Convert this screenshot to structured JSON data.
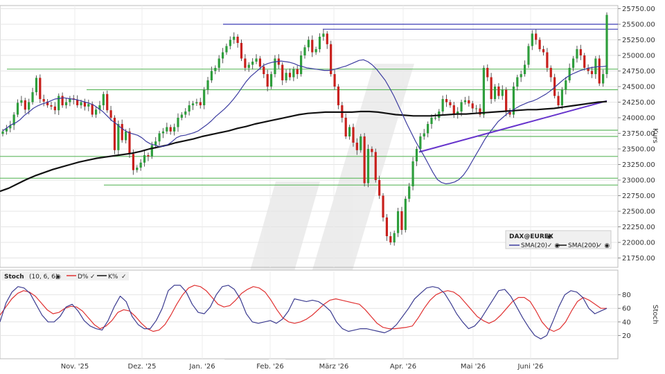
{
  "chart_data": [
    {
      "type": "candlestick",
      "instrument": "DAX@EUREX",
      "ylabel": "Kurs",
      "ylim": [
        21600,
        25800
      ],
      "y_ticks": [
        "25750.00",
        "25500.00",
        "25250.00",
        "25000.00",
        "24750.00",
        "24500.00",
        "24250.00",
        "24000.00",
        "23750.00",
        "23500.00",
        "23250.00",
        "23000.00",
        "22750.00",
        "22500.00",
        "22250.00",
        "22000.00",
        "21750.00"
      ],
      "x_ticks": [
        "Nov. '25",
        "Dez. '25",
        "Jan. '26",
        "Feb. '26",
        "März '26",
        "Apr. '26",
        "Mai '26",
        "Juni '26"
      ],
      "grid": true,
      "legend": [
        {
          "name": "SMA(20)",
          "color": "#3c3ca0"
        },
        {
          "name": "SMA(200)",
          "color": "#111111"
        }
      ],
      "colors": {
        "up": "#2e9e3c",
        "down": "#c8201c",
        "sma20": "#3c3ca0",
        "sma200": "#111111",
        "support": "#5fb85f",
        "resistance": "#3b3bb4",
        "trendline": "#6633cc"
      },
      "candles_close": [
        23780,
        23830,
        23880,
        24050,
        24240,
        24280,
        24130,
        24250,
        24410,
        24640,
        24300,
        24260,
        24200,
        24180,
        24120,
        24350,
        24200,
        24250,
        24310,
        24290,
        24200,
        24250,
        24180,
        24220,
        24050,
        24130,
        24200,
        24380,
        24120,
        24000,
        23480,
        23900,
        23640,
        23780,
        23420,
        23160,
        23200,
        23280,
        23400,
        23380,
        23560,
        23620,
        23750,
        23780,
        23850,
        23780,
        23850,
        24000,
        24050,
        24100,
        24200,
        24230,
        24250,
        24200,
        24450,
        24600,
        24750,
        24800,
        24950,
        25050,
        25150,
        25250,
        25300,
        25200,
        24950,
        24800,
        24850,
        24900,
        24950,
        24820,
        24700,
        24500,
        24700,
        24950,
        24850,
        24600,
        24720,
        24650,
        24780,
        24700,
        25000,
        25130,
        25250,
        25050,
        25100,
        25300,
        25350,
        25180,
        24700,
        24500,
        24200,
        24000,
        23700,
        23850,
        23600,
        23480,
        23700,
        22950,
        23500,
        23450,
        23000,
        22750,
        22400,
        22100,
        22000,
        22150,
        22500,
        22200,
        22700,
        22900,
        23300,
        23500,
        23700,
        23750,
        23900,
        24000,
        24000,
        24100,
        24300,
        24250,
        24200,
        24050,
        24100,
        24250,
        24280,
        24230,
        24150,
        24150,
        24050,
        24800,
        24650,
        24300,
        24500,
        24350,
        24450,
        24100,
        24050,
        24500,
        24650,
        24700,
        24850,
        25150,
        25350,
        25250,
        25100,
        25050,
        24800,
        24650,
        24350,
        24200,
        24450,
        24600,
        24800,
        24950,
        25100,
        25000,
        24800,
        24750,
        24700,
        24950,
        24550,
        24700,
        25650
      ],
      "sma20_values": [
        23790,
        23840,
        23890,
        23920,
        23970,
        24040,
        24090,
        24150,
        24190,
        24220,
        24240,
        24270,
        24300,
        24310,
        24320,
        24310,
        24300,
        24290,
        24270,
        24250,
        24230,
        24200,
        24150,
        24100,
        24030,
        23960,
        23910,
        23850,
        23800,
        23760,
        23740,
        23720,
        23680,
        23620,
        23580,
        23560,
        23540,
        23540,
        23570,
        23620,
        23680,
        23710,
        23720,
        23740,
        23760,
        23790,
        23840,
        23890,
        23950,
        24020,
        24080,
        24140,
        24210,
        24290,
        24380,
        24480,
        24580,
        24660,
        24720,
        24780,
        24840,
        24870,
        24890,
        24900,
        24910,
        24900,
        24890,
        24870,
        24840,
        24820,
        24800,
        24790,
        24780,
        24770,
        24760,
        24760,
        24770,
        24790,
        24810,
        24830,
        24860,
        24890,
        24920,
        24930,
        24900,
        24850,
        24780,
        24690,
        24600,
        24480,
        24350,
        24200,
        24050,
        23900,
        23760,
        23620,
        23500,
        23380,
        23250,
        23120,
        23010,
        22960,
        22940,
        22950,
        22970,
        23010,
        23080,
        23180,
        23300,
        23420,
        23540,
        23660,
        23760,
        23850,
        23940,
        24000,
        24060,
        24110,
        24150,
        24190,
        24220,
        24250,
        24270,
        24300,
        24340,
        24380,
        24430,
        24490,
        24550,
        24610,
        24660,
        24700,
        24730,
        24760,
        24780,
        24800,
        24810,
        24820,
        24820,
        24830
      ],
      "sma200_values": [
        22820,
        22870,
        22940,
        23010,
        23070,
        23120,
        23170,
        23210,
        23250,
        23290,
        23320,
        23350,
        23370,
        23390,
        23410,
        23430,
        23460,
        23500,
        23530,
        23560,
        23600,
        23630,
        23660,
        23700,
        23730,
        23760,
        23790,
        23830,
        23860,
        23900,
        23930,
        23960,
        23990,
        24020,
        24050,
        24070,
        24080,
        24090,
        24090,
        24090,
        24090,
        24100,
        24100,
        24090,
        24070,
        24050,
        24040,
        24030,
        24030,
        24030,
        24040,
        24050,
        24060,
        24060,
        24070,
        24080,
        24090,
        24100,
        24110,
        24120,
        24130,
        24130,
        24140,
        24150,
        24170,
        24190,
        24210,
        24230,
        24250,
        24260
      ],
      "support_levels": [
        24780,
        24450,
        23800,
        23700,
        23380,
        23030,
        22920
      ],
      "resistance_levels": [
        25500,
        25420
      ],
      "trendline": [
        [
          23450,
          24270
        ]
      ]
    },
    {
      "type": "line",
      "indicator": "Stoch",
      "params": "(10, 6, 6)",
      "ylabel": "Stoch",
      "ylim": [
        0,
        100
      ],
      "y_ticks": [
        "80",
        "60",
        "40",
        "20"
      ],
      "series": [
        {
          "name": "D%",
          "color": "#e03030",
          "values": [
            50,
            62,
            74,
            82,
            86,
            84,
            78,
            68,
            58,
            52,
            54,
            60,
            63,
            62,
            56,
            46,
            36,
            30,
            34,
            42,
            54,
            58,
            56,
            48,
            38,
            30,
            26,
            28,
            36,
            50,
            66,
            80,
            90,
            94,
            92,
            86,
            76,
            66,
            62,
            64,
            72,
            82,
            88,
            92,
            90,
            84,
            72,
            58,
            46,
            40,
            38,
            40,
            44,
            50,
            58,
            66,
            72,
            74,
            72,
            70,
            68,
            66,
            58,
            48,
            38,
            32,
            30,
            30,
            31,
            32,
            34,
            46,
            60,
            72,
            80,
            84,
            86,
            84,
            78,
            68,
            58,
            48,
            42,
            38,
            42,
            50,
            60,
            70,
            76,
            76,
            70,
            56,
            40,
            30,
            26,
            30,
            40,
            56,
            70,
            76,
            72,
            66,
            60,
            60
          ]
        },
        {
          "name": "K%",
          "color": "#3b3b90",
          "values": [
            40,
            68,
            84,
            92,
            90,
            82,
            66,
            50,
            40,
            40,
            48,
            62,
            66,
            56,
            42,
            34,
            30,
            28,
            42,
            62,
            78,
            70,
            48,
            36,
            30,
            30,
            42,
            60,
            86,
            94,
            94,
            84,
            66,
            54,
            52,
            62,
            80,
            92,
            94,
            88,
            74,
            52,
            40,
            38,
            40,
            42,
            38,
            44,
            56,
            74,
            72,
            70,
            72,
            70,
            64,
            56,
            40,
            30,
            26,
            28,
            30,
            30,
            28,
            26,
            24,
            28,
            36,
            48,
            60,
            74,
            82,
            90,
            92,
            90,
            82,
            68,
            52,
            40,
            30,
            34,
            44,
            58,
            72,
            86,
            88,
            78,
            62,
            46,
            32,
            20,
            15,
            20,
            40,
            62,
            80,
            86,
            84,
            76,
            60,
            52,
            56,
            60
          ]
        }
      ]
    }
  ]
}
